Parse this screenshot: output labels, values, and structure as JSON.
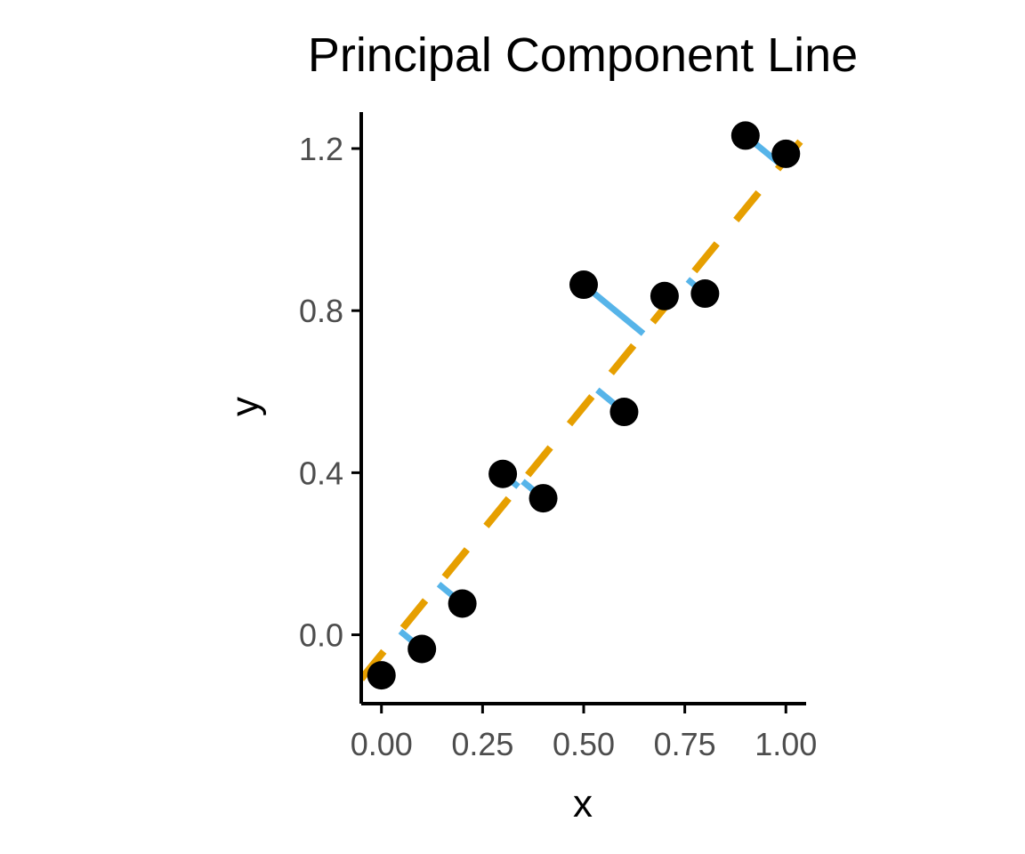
{
  "chart_data": {
    "type": "scatter",
    "title": "Principal Component Line",
    "xlabel": "x",
    "ylabel": "y",
    "xlim": [
      -0.05,
      1.05
    ],
    "ylim": [
      -0.17,
      1.29
    ],
    "x_ticks": [
      0,
      0.25,
      0.5,
      0.75,
      1.0
    ],
    "x_tick_labels": [
      "0.00",
      "0.25",
      "0.50",
      "0.75",
      "1.00"
    ],
    "y_ticks": [
      0,
      0.4,
      0.8,
      1.2
    ],
    "y_tick_labels": [
      "0.0",
      "0.4",
      "0.8",
      "1.2"
    ],
    "grid": false,
    "points": [
      {
        "x": 0.0,
        "y": -0.1
      },
      {
        "x": 0.1,
        "y": -0.035
      },
      {
        "x": 0.2,
        "y": 0.077
      },
      {
        "x": 0.3,
        "y": 0.397
      },
      {
        "x": 0.4,
        "y": 0.337
      },
      {
        "x": 0.5,
        "y": 0.864
      },
      {
        "x": 0.6,
        "y": 0.55
      },
      {
        "x": 0.7,
        "y": 0.836
      },
      {
        "x": 0.8,
        "y": 0.842
      },
      {
        "x": 0.9,
        "y": 1.232
      },
      {
        "x": 1.0,
        "y": 1.187
      }
    ],
    "pc_line": {
      "slope": 1.222,
      "intercept": -0.048,
      "style": "dashed"
    },
    "colors": {
      "points": "#000000",
      "pc_line": "#E69F00",
      "residuals": "#56B4E9",
      "axis": "#000000",
      "tick_label": "#4d4d4d"
    }
  }
}
